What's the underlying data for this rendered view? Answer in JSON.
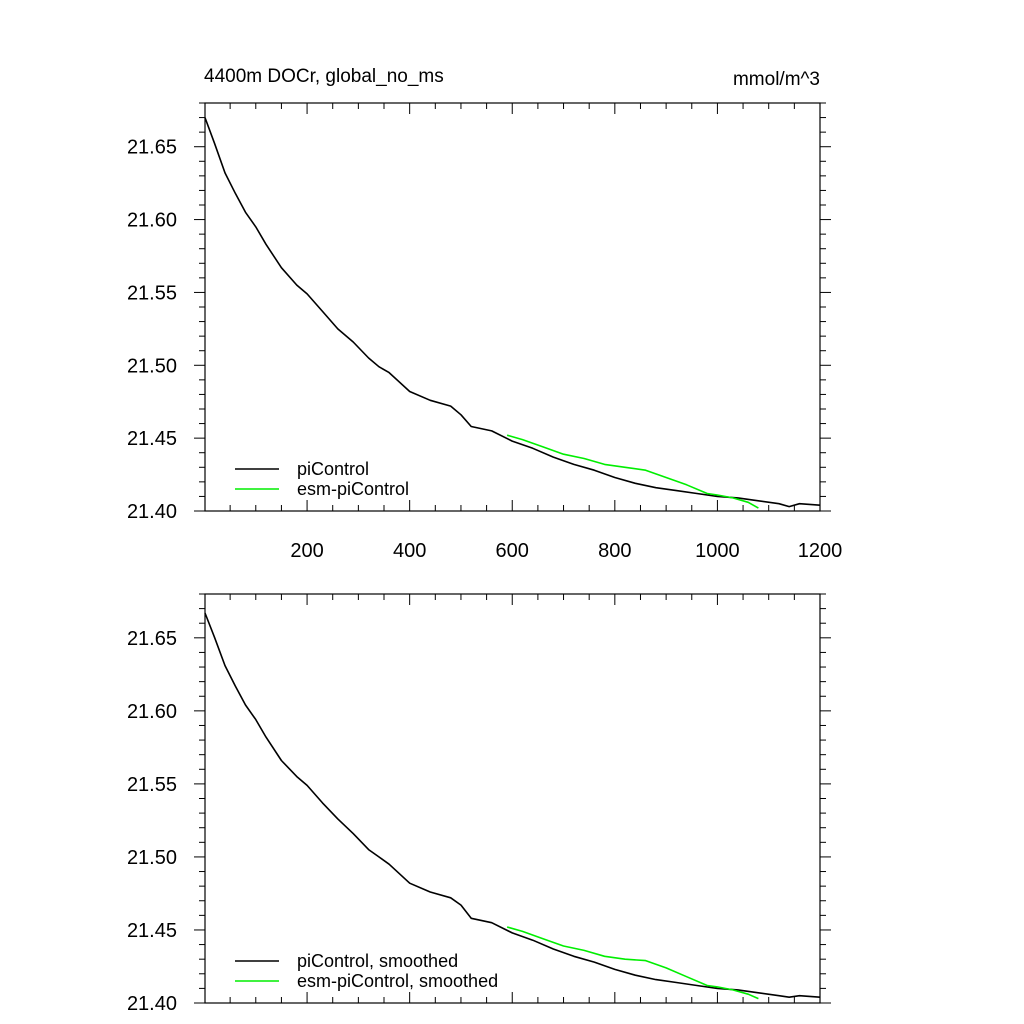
{
  "chart_data": [
    {
      "type": "line",
      "title": "4400m DOCr, global_no_ms",
      "units": "mmol/m^3",
      "xlim": [
        1,
        1200
      ],
      "ylim": [
        21.4,
        21.68
      ],
      "xticks": [
        200,
        400,
        600,
        800,
        1000,
        1200
      ],
      "yticks": [
        21.4,
        21.45,
        21.5,
        21.55,
        21.6,
        21.65
      ],
      "ytick_labels": [
        "21.40",
        "21.45",
        "21.50",
        "21.55",
        "21.60",
        "21.65"
      ],
      "show_xtick_labels": true,
      "legend_position": "bottom-left",
      "series": [
        {
          "name": "piControl",
          "color": "#000000",
          "x": [
            1,
            20,
            40,
            60,
            80,
            100,
            120,
            150,
            180,
            200,
            230,
            260,
            290,
            320,
            340,
            360,
            400,
            440,
            480,
            500,
            520,
            560,
            600,
            640,
            680,
            720,
            760,
            800,
            840,
            880,
            920,
            960,
            1000,
            1040,
            1080,
            1120,
            1140,
            1160,
            1200
          ],
          "y": [
            21.67,
            21.652,
            21.632,
            21.618,
            21.605,
            21.595,
            21.583,
            21.567,
            21.555,
            21.549,
            21.537,
            21.525,
            21.516,
            21.505,
            21.499,
            21.495,
            21.482,
            21.476,
            21.472,
            21.466,
            21.458,
            21.455,
            21.448,
            21.443,
            21.437,
            21.432,
            21.428,
            21.423,
            21.419,
            21.416,
            21.414,
            21.412,
            21.41,
            21.409,
            21.407,
            21.405,
            21.403,
            21.405,
            21.404
          ]
        },
        {
          "name": "esm-piControl",
          "color": "#00ee00",
          "x": [
            590,
            620,
            660,
            700,
            740,
            780,
            820,
            860,
            900,
            940,
            980,
            1000,
            1030,
            1060,
            1080
          ],
          "y": [
            21.452,
            21.449,
            21.444,
            21.439,
            21.436,
            21.432,
            21.43,
            21.428,
            21.423,
            21.418,
            21.412,
            21.411,
            21.409,
            21.406,
            21.402
          ]
        }
      ]
    },
    {
      "type": "line",
      "title": "",
      "units": "",
      "xlim": [
        1,
        1200
      ],
      "ylim": [
        21.4,
        21.68
      ],
      "xticks": [
        200,
        400,
        600,
        800,
        1000,
        1200
      ],
      "yticks": [
        21.4,
        21.45,
        21.5,
        21.55,
        21.6,
        21.65
      ],
      "ytick_labels": [
        "21.40",
        "21.45",
        "21.50",
        "21.55",
        "21.60",
        "21.65"
      ],
      "show_xtick_labels": false,
      "legend_position": "bottom-left",
      "series": [
        {
          "name": "piControl, smoothed",
          "color": "#000000",
          "x": [
            1,
            20,
            40,
            60,
            80,
            100,
            120,
            150,
            180,
            200,
            230,
            260,
            290,
            320,
            340,
            360,
            400,
            440,
            480,
            500,
            520,
            560,
            600,
            640,
            680,
            720,
            760,
            800,
            840,
            880,
            920,
            960,
            1000,
            1040,
            1080,
            1120,
            1140,
            1160,
            1200
          ],
          "y": [
            21.667,
            21.65,
            21.631,
            21.617,
            21.604,
            21.594,
            21.582,
            21.566,
            21.555,
            21.549,
            21.537,
            21.526,
            21.516,
            21.505,
            21.5,
            21.495,
            21.482,
            21.476,
            21.472,
            21.467,
            21.458,
            21.455,
            21.448,
            21.443,
            21.437,
            21.432,
            21.428,
            21.423,
            21.419,
            21.416,
            21.414,
            21.412,
            21.41,
            21.409,
            21.407,
            21.405,
            21.404,
            21.405,
            21.404
          ]
        },
        {
          "name": "esm-piControl, smoothed",
          "color": "#00ee00",
          "x": [
            590,
            620,
            660,
            700,
            740,
            780,
            820,
            860,
            900,
            940,
            980,
            1000,
            1030,
            1060,
            1080
          ],
          "y": [
            21.452,
            21.449,
            21.444,
            21.439,
            21.436,
            21.432,
            21.43,
            21.429,
            21.424,
            21.418,
            21.412,
            21.411,
            21.409,
            21.406,
            21.403
          ]
        }
      ]
    }
  ]
}
